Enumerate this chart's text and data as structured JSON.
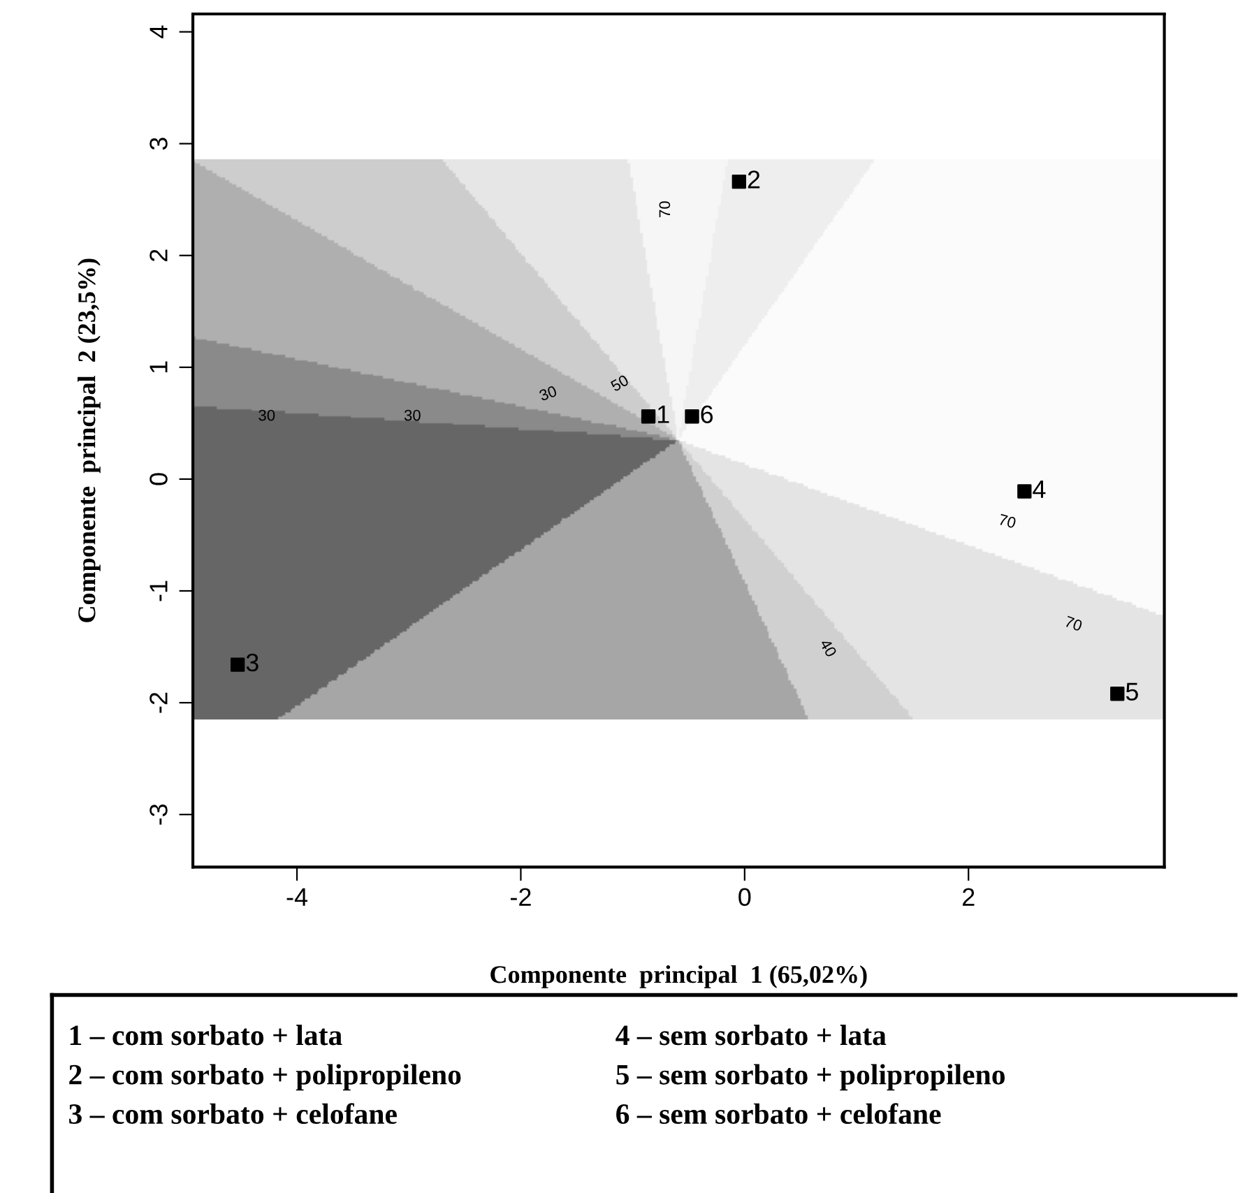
{
  "chart_data": {
    "type": "scatter",
    "xlabel": "Componente  principal  1 (65,02%)",
    "ylabel": "Componente  principal  2 (23,5%)",
    "x": [
      -0.86,
      -0.05,
      -4.53,
      2.5,
      3.33,
      -0.47
    ],
    "values": [
      0.56,
      2.66,
      -1.66,
      -0.11,
      -1.92,
      0.56
    ],
    "color": "#000000",
    "marker": "square",
    "grid": false,
    "bands": [
      {
        "axis": "y",
        "from": -2.15,
        "to": 2.86
      }
    ],
    "xlim": [
      -4.93,
      3.75
    ],
    "xticks": [
      -4,
      -2,
      0,
      2
    ],
    "ylim": [
      -3.47,
      4.16
    ],
    "yticks": [
      -3,
      -2,
      -1,
      0,
      1,
      2,
      3,
      4
    ],
    "annotations": [
      {
        "text": "1",
        "x": -0.86,
        "y": 0.56
      },
      {
        "text": "2",
        "x": -0.05,
        "y": 2.66
      },
      {
        "text": "3",
        "x": -4.53,
        "y": -1.66
      },
      {
        "text": "4",
        "x": 2.5,
        "y": -0.11
      },
      {
        "text": "5",
        "x": 3.33,
        "y": -1.92
      },
      {
        "text": "6",
        "x": -0.47,
        "y": 0.56
      },
      "70",
      "30",
      "30",
      "30",
      "50",
      "70",
      "70",
      "40",
      "1 – com sorbato + lata",
      "2 – com sorbato + polipropileno",
      "3 – com sorbato + celofane",
      "4 – sem sorbato + lata",
      "5 – sem sorbato + polipropileno",
      "6 – sem sorbato + celofane"
    ]
  }
}
